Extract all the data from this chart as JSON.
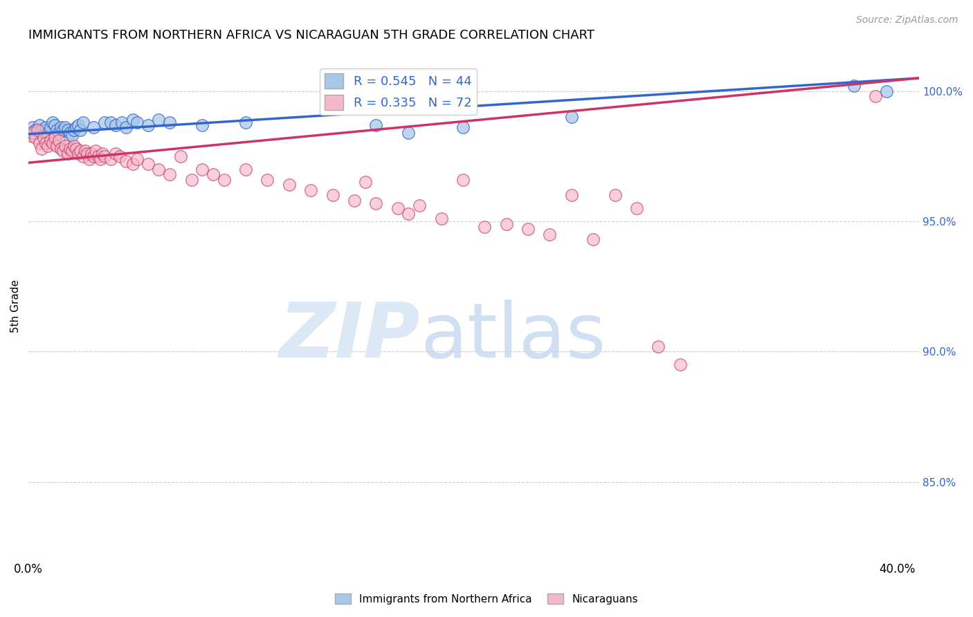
{
  "title": "IMMIGRANTS FROM NORTHERN AFRICA VS NICARAGUAN 5TH GRADE CORRELATION CHART",
  "source": "Source: ZipAtlas.com",
  "ylabel": "5th Grade",
  "ylabel_right_ticks": [
    "100.0%",
    "95.0%",
    "90.0%",
    "85.0%"
  ],
  "ylabel_right_vals": [
    1.0,
    0.95,
    0.9,
    0.85
  ],
  "legend1_label": "R = 0.545   N = 44",
  "legend2_label": "R = 0.335   N = 72",
  "legend1_color": "#a8c8e8",
  "legend2_color": "#f4b8c8",
  "line1_color": "#3366cc",
  "line2_color": "#cc3366",
  "blue_dots": [
    [
      0.001,
      0.984
    ],
    [
      0.002,
      0.986
    ],
    [
      0.003,
      0.985
    ],
    [
      0.004,
      0.984
    ],
    [
      0.005,
      0.987
    ],
    [
      0.006,
      0.985
    ],
    [
      0.007,
      0.983
    ],
    [
      0.008,
      0.986
    ],
    [
      0.009,
      0.984
    ],
    [
      0.01,
      0.986
    ],
    [
      0.011,
      0.988
    ],
    [
      0.012,
      0.987
    ],
    [
      0.013,
      0.985
    ],
    [
      0.014,
      0.984
    ],
    [
      0.015,
      0.986
    ],
    [
      0.016,
      0.985
    ],
    [
      0.017,
      0.986
    ],
    [
      0.018,
      0.985
    ],
    [
      0.019,
      0.984
    ],
    [
      0.02,
      0.983
    ],
    [
      0.021,
      0.985
    ],
    [
      0.022,
      0.986
    ],
    [
      0.023,
      0.987
    ],
    [
      0.024,
      0.985
    ],
    [
      0.025,
      0.988
    ],
    [
      0.03,
      0.986
    ],
    [
      0.035,
      0.988
    ],
    [
      0.038,
      0.988
    ],
    [
      0.04,
      0.987
    ],
    [
      0.043,
      0.988
    ],
    [
      0.045,
      0.986
    ],
    [
      0.048,
      0.989
    ],
    [
      0.05,
      0.988
    ],
    [
      0.055,
      0.987
    ],
    [
      0.06,
      0.989
    ],
    [
      0.065,
      0.988
    ],
    [
      0.08,
      0.987
    ],
    [
      0.1,
      0.988
    ],
    [
      0.16,
      0.987
    ],
    [
      0.175,
      0.984
    ],
    [
      0.2,
      0.986
    ],
    [
      0.25,
      0.99
    ],
    [
      0.38,
      1.002
    ],
    [
      0.395,
      1.0
    ]
  ],
  "pink_dots": [
    [
      0.001,
      0.983
    ],
    [
      0.002,
      0.984
    ],
    [
      0.003,
      0.982
    ],
    [
      0.004,
      0.985
    ],
    [
      0.005,
      0.98
    ],
    [
      0.006,
      0.978
    ],
    [
      0.007,
      0.982
    ],
    [
      0.008,
      0.98
    ],
    [
      0.009,
      0.979
    ],
    [
      0.01,
      0.981
    ],
    [
      0.011,
      0.98
    ],
    [
      0.012,
      0.982
    ],
    [
      0.013,
      0.979
    ],
    [
      0.014,
      0.981
    ],
    [
      0.015,
      0.978
    ],
    [
      0.016,
      0.977
    ],
    [
      0.017,
      0.979
    ],
    [
      0.018,
      0.976
    ],
    [
      0.019,
      0.978
    ],
    [
      0.02,
      0.977
    ],
    [
      0.021,
      0.979
    ],
    [
      0.022,
      0.978
    ],
    [
      0.023,
      0.976
    ],
    [
      0.024,
      0.977
    ],
    [
      0.025,
      0.975
    ],
    [
      0.026,
      0.977
    ],
    [
      0.027,
      0.976
    ],
    [
      0.028,
      0.974
    ],
    [
      0.029,
      0.976
    ],
    [
      0.03,
      0.975
    ],
    [
      0.031,
      0.977
    ],
    [
      0.032,
      0.975
    ],
    [
      0.033,
      0.974
    ],
    [
      0.034,
      0.976
    ],
    [
      0.035,
      0.975
    ],
    [
      0.038,
      0.974
    ],
    [
      0.04,
      0.976
    ],
    [
      0.042,
      0.975
    ],
    [
      0.045,
      0.973
    ],
    [
      0.048,
      0.972
    ],
    [
      0.05,
      0.974
    ],
    [
      0.055,
      0.972
    ],
    [
      0.06,
      0.97
    ],
    [
      0.065,
      0.968
    ],
    [
      0.07,
      0.975
    ],
    [
      0.075,
      0.966
    ],
    [
      0.08,
      0.97
    ],
    [
      0.085,
      0.968
    ],
    [
      0.09,
      0.966
    ],
    [
      0.1,
      0.97
    ],
    [
      0.11,
      0.966
    ],
    [
      0.12,
      0.964
    ],
    [
      0.13,
      0.962
    ],
    [
      0.14,
      0.96
    ],
    [
      0.15,
      0.958
    ],
    [
      0.155,
      0.965
    ],
    [
      0.16,
      0.957
    ],
    [
      0.17,
      0.955
    ],
    [
      0.175,
      0.953
    ],
    [
      0.18,
      0.956
    ],
    [
      0.19,
      0.951
    ],
    [
      0.2,
      0.966
    ],
    [
      0.21,
      0.948
    ],
    [
      0.22,
      0.949
    ],
    [
      0.23,
      0.947
    ],
    [
      0.24,
      0.945
    ],
    [
      0.25,
      0.96
    ],
    [
      0.26,
      0.943
    ],
    [
      0.27,
      0.96
    ],
    [
      0.28,
      0.955
    ],
    [
      0.29,
      0.902
    ],
    [
      0.3,
      0.895
    ],
    [
      0.39,
      0.998
    ]
  ],
  "xlim": [
    0.0,
    0.41
  ],
  "ylim": [
    0.82,
    1.015
  ],
  "blue_line_x": [
    0.0,
    0.41
  ],
  "blue_line_y": [
    0.9835,
    1.005
  ],
  "pink_line_x": [
    0.0,
    0.41
  ],
  "pink_line_y": [
    0.9725,
    1.005
  ]
}
